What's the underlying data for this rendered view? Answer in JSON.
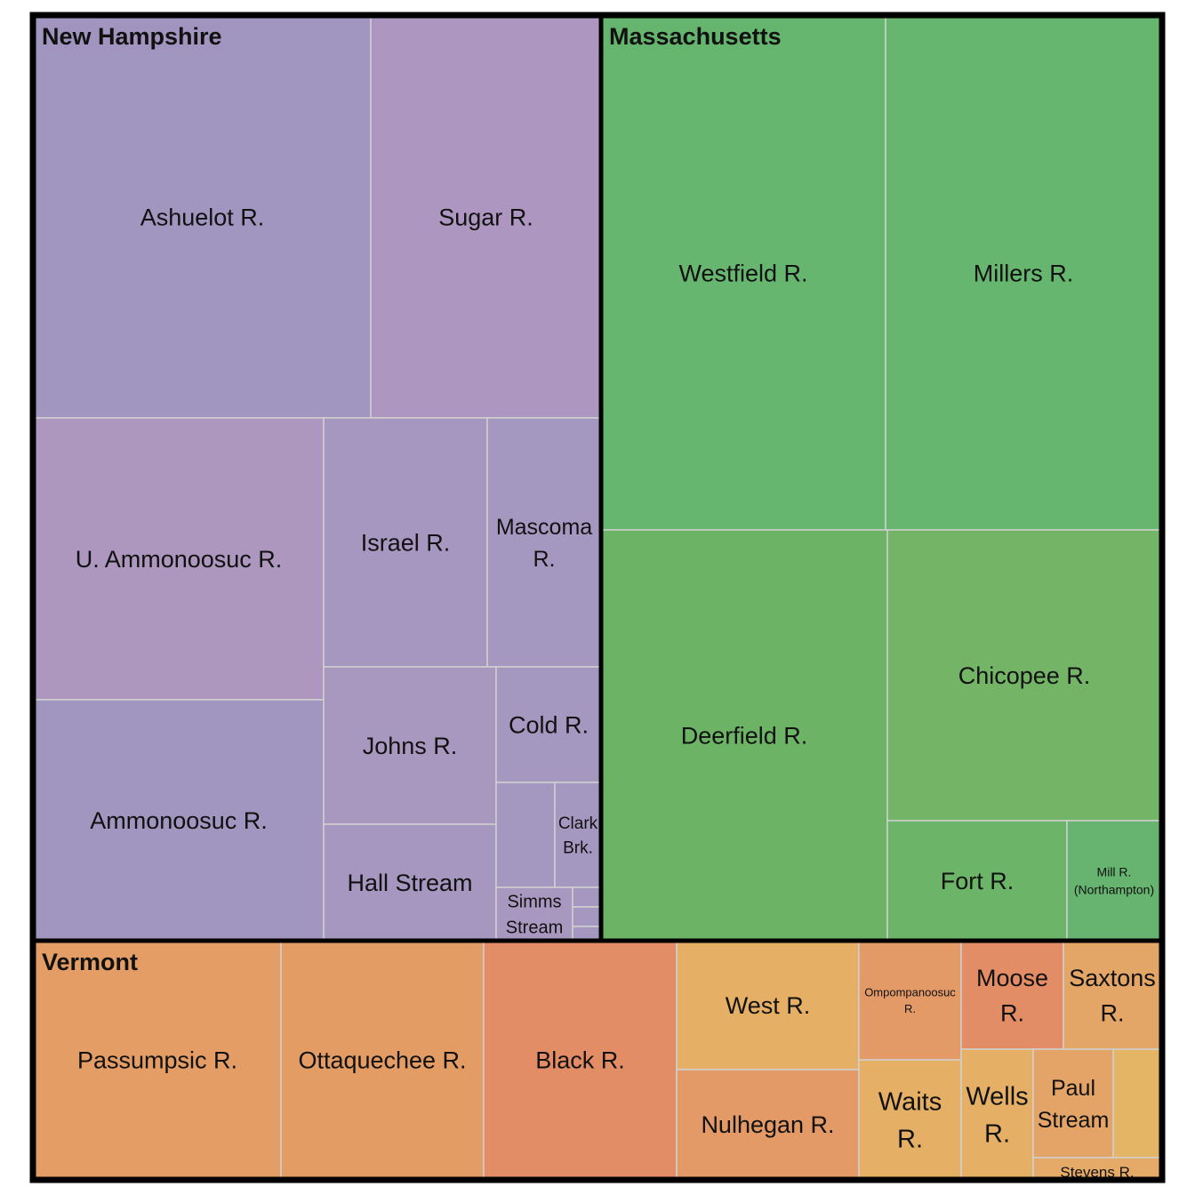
{
  "chart_data": {
    "type": "treemap",
    "groups": [
      {
        "name": "New Hampshire",
        "color": "#a295c0",
        "items": [
          {
            "name": "Ashuelot R.",
            "color": "#a096bf"
          },
          {
            "name": "Sugar R.",
            "color": "#ad97c0"
          },
          {
            "name": "U. Ammonoosuc R.",
            "color": "#ad97bf"
          },
          {
            "name": "Israel R.",
            "color": "#a697c0"
          },
          {
            "name": "Mascoma R.",
            "color": "#a598c0"
          },
          {
            "name": "Ammonoosuc R.",
            "color": "#a096c0"
          },
          {
            "name": "Johns R.",
            "color": "#a898c0"
          },
          {
            "name": "Cold R.",
            "color": "#a598c0"
          },
          {
            "name": "Hall Stream",
            "color": "#a597c0"
          },
          {
            "name": "",
            "color": "#a598c0"
          },
          {
            "name": "Clark Brk.",
            "color": "#a598c0"
          },
          {
            "name": "Simms Stream",
            "color": "#a898c0"
          },
          {
            "name": "",
            "color": "#a598c0"
          },
          {
            "name": "",
            "color": "#a598c0"
          },
          {
            "name": "",
            "color": "#a598c0"
          }
        ]
      },
      {
        "name": "Massachusetts",
        "color": "#66b570",
        "items": [
          {
            "name": "Westfield R.",
            "color": "#66b670"
          },
          {
            "name": "Millers R.",
            "color": "#66b670"
          },
          {
            "name": "Deerfield R.",
            "color": "#6cb366"
          },
          {
            "name": "Chicopee R.",
            "color": "#73b466"
          },
          {
            "name": "Fort R.",
            "color": "#6cb468"
          },
          {
            "name": "Mill R. (Northampton)",
            "color": "#66b46f"
          }
        ]
      },
      {
        "name": "Vermont",
        "color": "#e39c64",
        "items": [
          {
            "name": "Passumpsic R.",
            "color": "#e49d64"
          },
          {
            "name": "Ottaquechee R.",
            "color": "#e39c64"
          },
          {
            "name": "Black R.",
            "color": "#e38d66"
          },
          {
            "name": "West R.",
            "color": "#e5b066"
          },
          {
            "name": "Nulhegan R.",
            "color": "#e39a66"
          },
          {
            "name": "Ompompanoosuc R.",
            "color": "#e39a66"
          },
          {
            "name": "Moose R.",
            "color": "#e38d66"
          },
          {
            "name": "Saxtons R.",
            "color": "#e4a667"
          },
          {
            "name": "Waits R.",
            "color": "#e5b066"
          },
          {
            "name": "Wells R.",
            "color": "#e5b066"
          },
          {
            "name": "Paul Stream",
            "color": "#e4a467"
          },
          {
            "name": "",
            "color": "#e5b566"
          },
          {
            "name": "Stevens R.",
            "color": "#e5aa67"
          }
        ]
      }
    ]
  }
}
